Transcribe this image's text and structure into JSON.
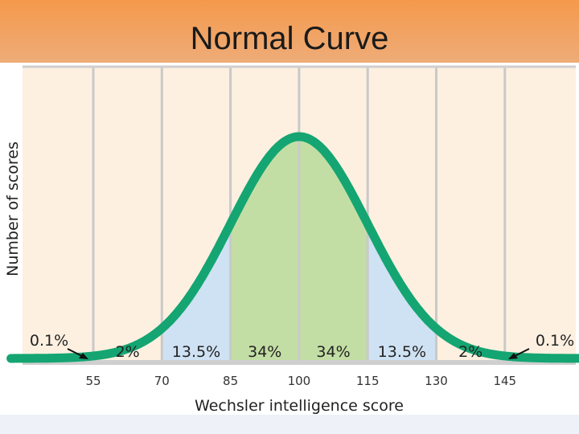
{
  "title": "Normal Curve",
  "chart_data": {
    "type": "area",
    "xlabel": "Wechsler intelligence score",
    "ylabel": "Number of scores",
    "mean": 100,
    "sd": 15,
    "xlim": [
      40,
      160
    ],
    "ticks": [
      55,
      70,
      85,
      100,
      115,
      130,
      145
    ],
    "regions": [
      {
        "from": 40,
        "to": 55,
        "percent": "0.1%",
        "color": "#fdf0e0"
      },
      {
        "from": 55,
        "to": 70,
        "percent": "2%",
        "color": "#fdf0e0"
      },
      {
        "from": 70,
        "to": 85,
        "percent": "13.5%",
        "color": "#cfe2f3"
      },
      {
        "from": 85,
        "to": 100,
        "percent": "34%",
        "color": "#c3dea4"
      },
      {
        "from": 100,
        "to": 115,
        "percent": "34%",
        "color": "#c3dea4"
      },
      {
        "from": 115,
        "to": 130,
        "percent": "13.5%",
        "color": "#cfe2f3"
      },
      {
        "from": 130,
        "to": 145,
        "percent": "2%",
        "color": "#fdf0e0"
      },
      {
        "from": 145,
        "to": 160,
        "percent": "0.1%",
        "color": "#fdf0e0"
      }
    ],
    "curve_color": "#14a572",
    "background_color": "#fdf0e0",
    "grid": true
  }
}
